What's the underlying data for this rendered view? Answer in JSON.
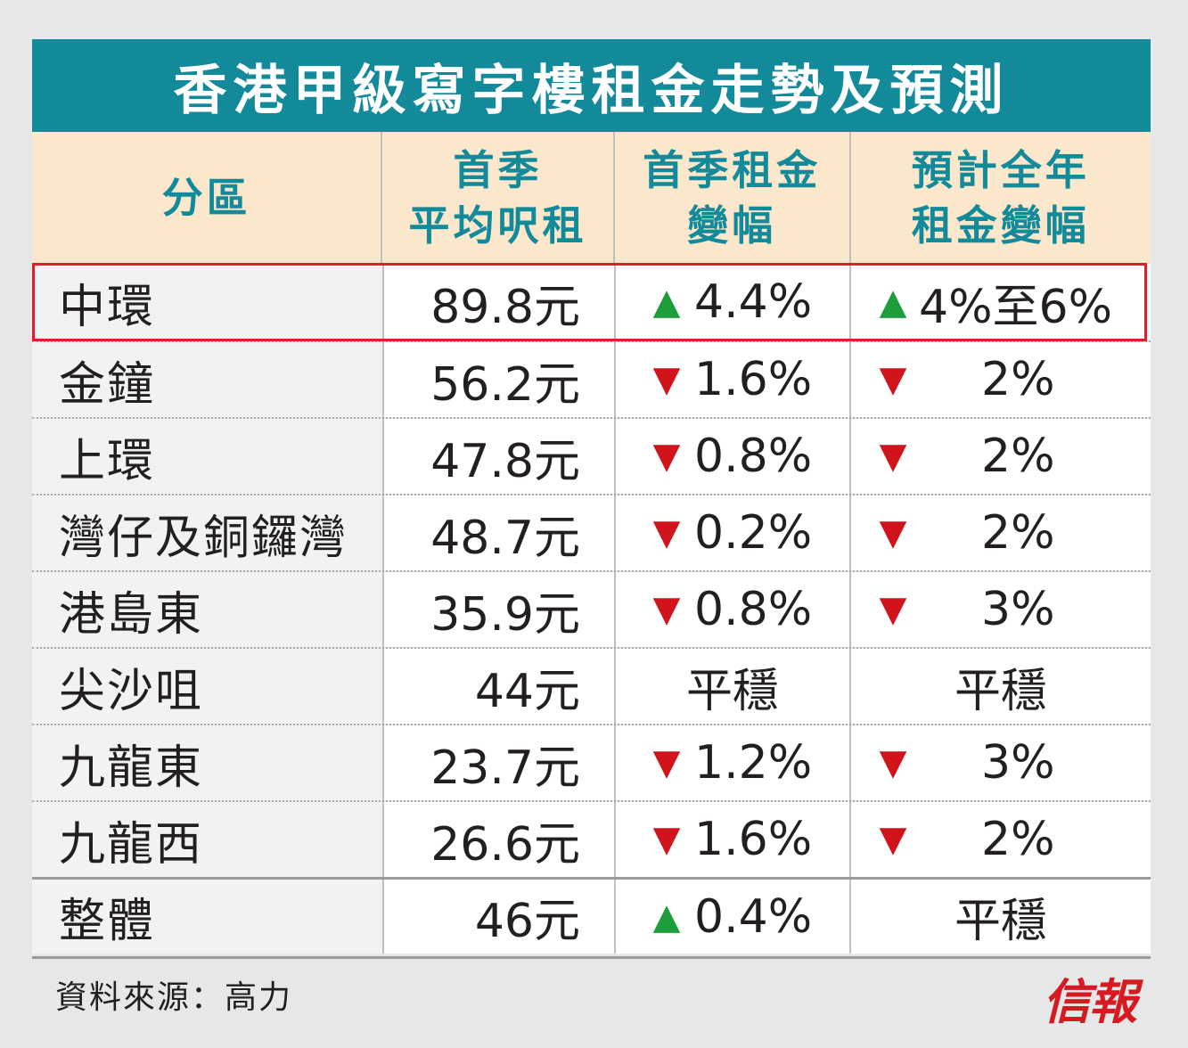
{
  "title": "香港甲級寫字樓租金走勢及預測",
  "headers": {
    "district": "分區",
    "avg_rent_l1": "首季",
    "avg_rent_l2": "平均呎租",
    "q1_change_l1": "首季租金",
    "q1_change_l2": "變幅",
    "forecast_l1": "預計全年",
    "forecast_l2": "租金變幅"
  },
  "rows": [
    {
      "district": "中環",
      "rent": "89.8元",
      "q1_dir": "up",
      "q1": "4.4%",
      "fy_dir": "up",
      "fy": "4%至6%"
    },
    {
      "district": "金鐘",
      "rent": "56.2元",
      "q1_dir": "down",
      "q1": "1.6%",
      "fy_dir": "down",
      "fy": "2%"
    },
    {
      "district": "上環",
      "rent": "47.8元",
      "q1_dir": "down",
      "q1": "0.8%",
      "fy_dir": "down",
      "fy": "2%"
    },
    {
      "district": "灣仔及銅鑼灣",
      "rent": "48.7元",
      "q1_dir": "down",
      "q1": "0.2%",
      "fy_dir": "down",
      "fy": "2%"
    },
    {
      "district": "港島東",
      "rent": "35.9元",
      "q1_dir": "down",
      "q1": "0.8%",
      "fy_dir": "down",
      "fy": "3%"
    },
    {
      "district": "尖沙咀",
      "rent": "44元",
      "q1_dir": "flat",
      "q1": "平穩",
      "fy_dir": "flat",
      "fy": "平穩"
    },
    {
      "district": "九龍東",
      "rent": "23.7元",
      "q1_dir": "down",
      "q1": "1.2%",
      "fy_dir": "down",
      "fy": "3%"
    },
    {
      "district": "九龍西",
      "rent": "26.6元",
      "q1_dir": "down",
      "q1": "1.6%",
      "fy_dir": "down",
      "fy": "2%"
    },
    {
      "district": "整體",
      "rent": "46元",
      "q1_dir": "up",
      "q1": "0.4%",
      "fy_dir": "flat",
      "fy": "平穩"
    }
  ],
  "source": "資料來源：高力",
  "logo": "信報",
  "colors": {
    "title_bg": "#138a99",
    "header_bg": "#fbe7cb",
    "up": "#1e9e3a",
    "down": "#d1141b",
    "highlight": "#e01e2b"
  },
  "chart_data": {
    "type": "table",
    "title": "香港甲級寫字樓租金走勢及預測",
    "columns": [
      "分區",
      "首季平均呎租",
      "首季租金變幅",
      "預計全年租金變幅"
    ],
    "rows": [
      [
        "中環",
        "89.8元",
        "▲4.4%",
        "▲4%至6%"
      ],
      [
        "金鐘",
        "56.2元",
        "▼1.6%",
        "▼2%"
      ],
      [
        "上環",
        "47.8元",
        "▼0.8%",
        "▼2%"
      ],
      [
        "灣仔及銅鑼灣",
        "48.7元",
        "▼0.2%",
        "▼2%"
      ],
      [
        "港島東",
        "35.9元",
        "▼0.8%",
        "▼3%"
      ],
      [
        "尖沙咀",
        "44元",
        "平穩",
        "平穩"
      ],
      [
        "九龍東",
        "23.7元",
        "▼1.2%",
        "▼3%"
      ],
      [
        "九龍西",
        "26.6元",
        "▼1.6%",
        "▼2%"
      ],
      [
        "整體",
        "46元",
        "▲0.4%",
        "平穩"
      ]
    ],
    "avg_rent_hkd_per_sqft": [
      89.8,
      56.2,
      47.8,
      48.7,
      35.9,
      44,
      23.7,
      26.6,
      46
    ],
    "q1_change_pct": [
      4.4,
      -1.6,
      -0.8,
      -0.2,
      -0.8,
      0,
      -1.2,
      -1.6,
      0.4
    ]
  }
}
